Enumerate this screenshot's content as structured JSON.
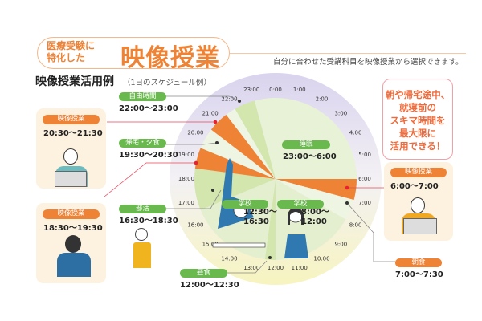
{
  "header": {
    "tagline_line1": "医療受験に",
    "tagline_line2": "特化した",
    "title": "映像授業",
    "subtitle": "自分に合わせた受講科目を映像授業から選択できます。"
  },
  "section": {
    "title": "映像授業活用例",
    "subtitle": "（1日のスケジュール例）"
  },
  "callout": {
    "lines": [
      "朝や帰宅途中、",
      "就寝前の",
      "スキマ時間を",
      "最大限に",
      "活用できる！"
    ]
  },
  "colors": {
    "orange": "#ee8336",
    "green": "#6ab94e",
    "sleep": "#e8f2d6",
    "school": "#e4efcf",
    "activity": "#d3e6ad",
    "gap": "#eef5e3",
    "card_bg": "#fdf1df",
    "callout_text": "#ee6b3c"
  },
  "clock": {
    "hour_labels": [
      "0:00",
      "1:00",
      "2:00",
      "3:00",
      "4:00",
      "5:00",
      "6:00",
      "7:00",
      "8:00",
      "9:00",
      "10:00",
      "11:00",
      "12:00",
      "13:00",
      "14:00",
      "15:00",
      "16:00",
      "17:00",
      "18:00",
      "19:00",
      "20:00",
      "21:00",
      "22:00",
      "23:00"
    ],
    "segments": [
      {
        "start": 23,
        "end": 30,
        "kind": "sleep"
      },
      {
        "start": 6,
        "end": 7,
        "kind": "video"
      },
      {
        "start": 7,
        "end": 8,
        "kind": "gap"
      },
      {
        "start": 8,
        "end": 12,
        "kind": "school"
      },
      {
        "start": 12,
        "end": 12.5,
        "kind": "activity"
      },
      {
        "start": 12.5,
        "end": 16.5,
        "kind": "school"
      },
      {
        "start": 16.5,
        "end": 18.5,
        "kind": "activity"
      },
      {
        "start": 18.5,
        "end": 19.5,
        "kind": "video"
      },
      {
        "start": 19.5,
        "end": 20.5,
        "kind": "gap"
      },
      {
        "start": 20.5,
        "end": 21.5,
        "kind": "video"
      },
      {
        "start": 21.5,
        "end": 22,
        "kind": "gap"
      },
      {
        "start": 22,
        "end": 23,
        "kind": "activity"
      }
    ]
  },
  "events": {
    "sleep": {
      "label": "睡眠",
      "time": "23:00～6:00"
    },
    "school_am": {
      "label": "学校",
      "time_line1": "8:00～",
      "time_line2": "12:00"
    },
    "school_pm": {
      "label": "学校",
      "time_line1": "12:30～",
      "time_line2": "16:30"
    },
    "lunch": {
      "label": "昼食",
      "time": "12:00～12:30"
    },
    "club": {
      "label": "部活",
      "time": "16:30～18:30"
    },
    "dinner": {
      "label": "帰宅・夕食",
      "time": "19:30～20:30"
    },
    "free": {
      "label": "自由時間",
      "time": "22:00～23:00"
    },
    "breakfast": {
      "label": "朝食",
      "time": "7:00～7:30"
    },
    "video_night": {
      "label": "映像授業",
      "time": "20:30～21:30"
    },
    "video_evening": {
      "label": "映像授業",
      "time": "18:30～19:30"
    },
    "video_morning": {
      "label": "映像授業",
      "time": "6:00～7:00"
    }
  }
}
